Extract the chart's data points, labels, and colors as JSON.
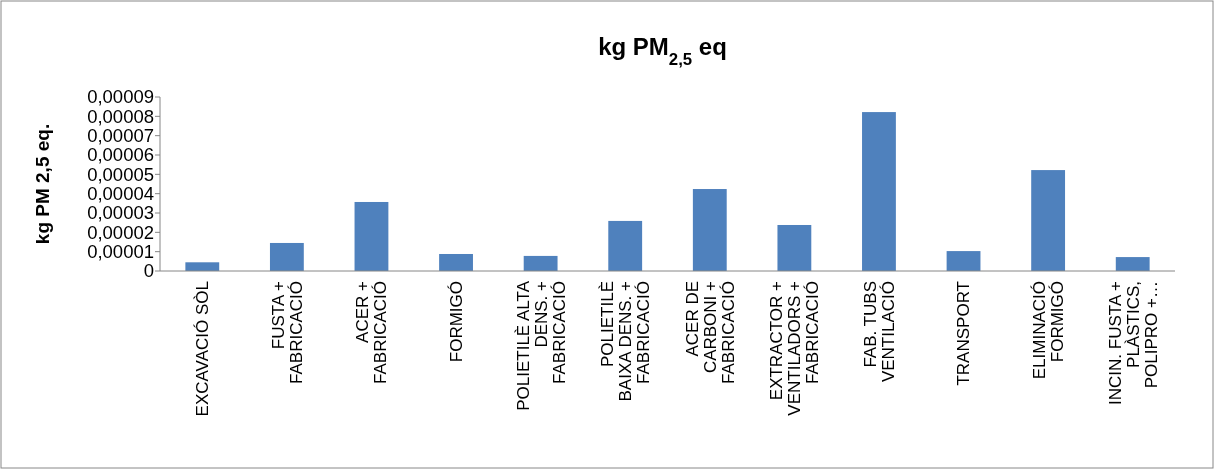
{
  "chart_data": {
    "type": "bar",
    "title": "kg PM$_{2,5}$ eq",
    "ylabel": "kg PM 2,5 eq.",
    "categories": [
      "EXCAVACIÓ SÒL",
      "FUSTA + FABRICACIÓ",
      "ACER + FABRICACIÓ",
      "FORMIGÓ",
      "POLIETILÈ ALTA DENS. + FABRICACIÓ",
      "POLIETILÈ BAIXA DENS. + FABRICACIÓ",
      "ACER DE CARBONI + FABRICACIÓ",
      "EXTRACTOR + VENTILADORS + FABRICACIÓ",
      "FAB. TUBS VENTILACIÓ",
      "TRANSPORT",
      "ELIMINACIÓ FORMIGÓ",
      "INCIN. FUSTA + PLÀSTICS, POLIPRO +…"
    ],
    "values": [
      4.5e-06,
      1.45e-05,
      3.57e-05,
      8.8e-06,
      7.8e-06,
      2.59e-05,
      4.24e-05,
      2.38e-05,
      8.22e-05,
      1.03e-05,
      5.22e-05,
      7.2e-06
    ],
    "color": "#4f81bd",
    "ylim": [
      0,
      9e-05
    ],
    "yticks": [
      0,
      {
        "value": 1e-05,
        "label": "0,00001"
      },
      {
        "value": 2e-05,
        "label": "0,00002"
      },
      {
        "value": 3e-05,
        "label": "0,00003"
      },
      {
        "value": 4e-05,
        "label": "0,00004"
      },
      {
        "value": 5e-05,
        "label": "0,00005"
      },
      {
        "value": 6e-05,
        "label": "0,00006"
      },
      {
        "value": 7e-05,
        "label": "0,00007"
      },
      {
        "value": 8e-05,
        "label": "0,00008"
      },
      {
        "value": 9e-05,
        "label": "0,00009"
      }
    ]
  }
}
